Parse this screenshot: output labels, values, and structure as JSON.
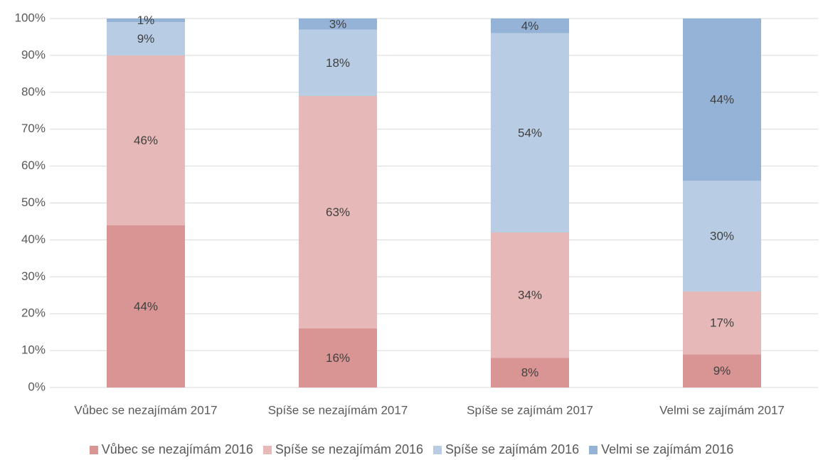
{
  "chart_data": {
    "type": "stacked_bar",
    "categories": [
      "Vůbec se nezajímám 2017",
      "Spíše se nezajímám 2017",
      "Spíše se zajímám 2017",
      "Velmi se zajímám 2017"
    ],
    "series": [
      {
        "name": "Vůbec se nezajímám 2016",
        "color": "#d99594",
        "values": [
          44,
          16,
          8,
          9
        ],
        "value_labels": [
          "44%",
          "16%",
          "8%",
          "9%"
        ]
      },
      {
        "name": "Spíše se nezajímám 2016",
        "color": "#e6b8b7",
        "values": [
          46,
          63,
          34,
          17
        ],
        "value_labels": [
          "46%",
          "63%",
          "34%",
          "17%"
        ]
      },
      {
        "name": "Spíše se zajímám 2016",
        "color": "#b8cce4",
        "values": [
          9,
          18,
          54,
          30
        ],
        "value_labels": [
          "9%",
          "18%",
          "54%",
          "30%"
        ]
      },
      {
        "name": "Velmi se zajímám 2016",
        "color": "#95b3d7",
        "values": [
          1,
          3,
          4,
          44
        ],
        "value_labels": [
          "1%",
          "3%",
          "4%",
          "44%"
        ]
      }
    ],
    "ylim": [
      0,
      100
    ],
    "yticks": [
      {
        "value": 0,
        "label": "0%"
      },
      {
        "value": 10,
        "label": "10%"
      },
      {
        "value": 20,
        "label": "20%"
      },
      {
        "value": 30,
        "label": "30%"
      },
      {
        "value": 40,
        "label": "40%"
      },
      {
        "value": 50,
        "label": "50%"
      },
      {
        "value": 60,
        "label": "60%"
      },
      {
        "value": 70,
        "label": "70%"
      },
      {
        "value": 80,
        "label": "80%"
      },
      {
        "value": 90,
        "label": "90%"
      },
      {
        "value": 100,
        "label": "100%"
      }
    ],
    "grid": true,
    "legend": "bottom"
  }
}
